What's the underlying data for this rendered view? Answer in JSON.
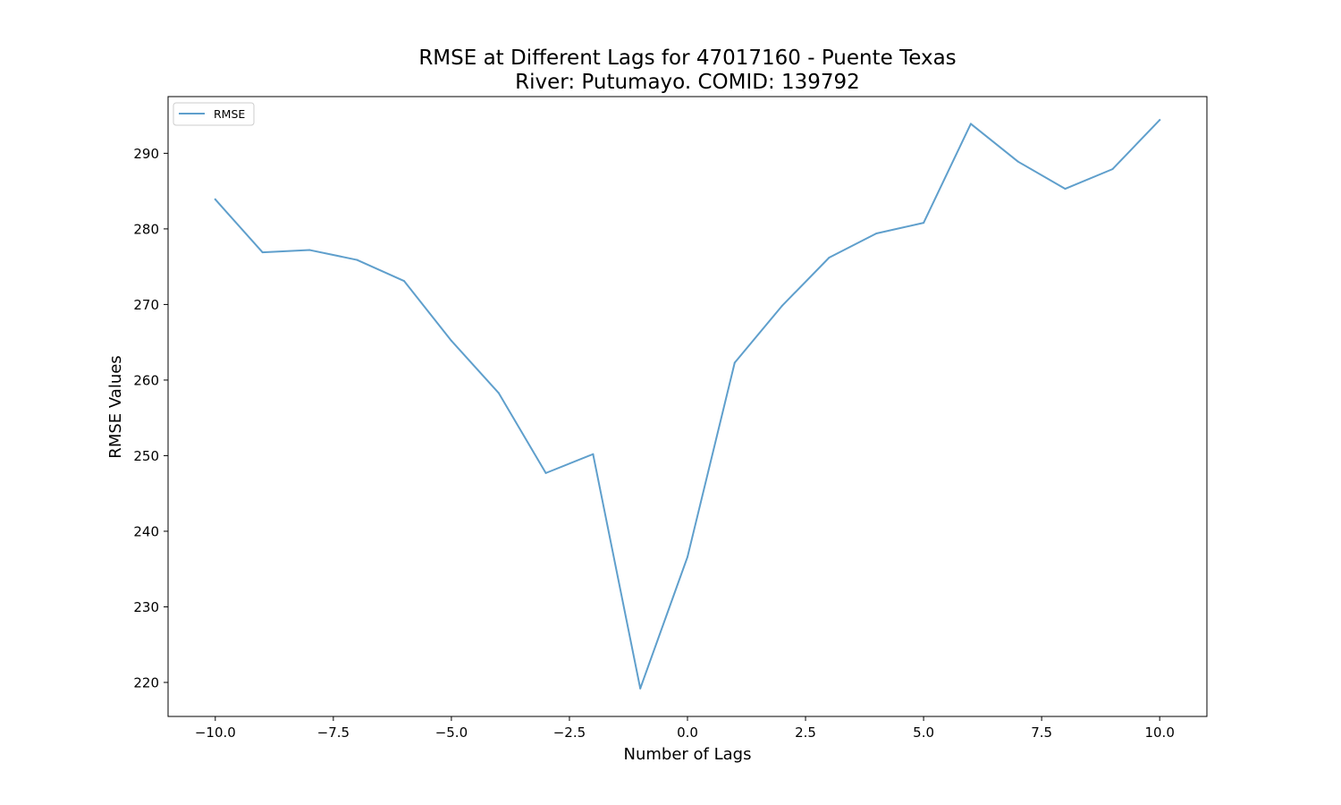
{
  "chart_data": {
    "type": "line",
    "title": "RMSE at Different Lags for 47017160 - Puente Texas",
    "subtitle": "River: Putumayo. COMID: 139792",
    "xlabel": "Number of Lags",
    "ylabel": "RMSE Values",
    "xlim": [
      -11,
      11
    ],
    "ylim": [
      215.5,
      297.5
    ],
    "xticks": [
      -10.0,
      -7.5,
      -5.0,
      -2.5,
      0.0,
      2.5,
      5.0,
      7.5,
      10.0
    ],
    "xtick_labels": [
      "−10.0",
      "−7.5",
      "−5.0",
      "−2.5",
      "0.0",
      "2.5",
      "5.0",
      "7.5",
      "10.0"
    ],
    "yticks": [
      220,
      230,
      240,
      250,
      260,
      270,
      280,
      290
    ],
    "ytick_labels": [
      "220",
      "230",
      "240",
      "250",
      "260",
      "270",
      "280",
      "290"
    ],
    "grid": false,
    "legend_position": "top-left",
    "series": [
      {
        "name": "RMSE",
        "color": "#5f9fcc",
        "x": [
          -10,
          -9,
          -8,
          -7,
          -6,
          -5,
          -4,
          -3,
          -2,
          -1,
          0,
          1,
          2,
          3,
          4,
          5,
          6,
          7,
          8,
          9,
          10
        ],
        "values": [
          283.9,
          276.9,
          277.2,
          275.9,
          273.1,
          265.2,
          258.3,
          247.7,
          250.2,
          219.2,
          236.6,
          262.3,
          269.8,
          276.2,
          279.4,
          280.8,
          293.9,
          288.9,
          285.3,
          287.9,
          294.4
        ]
      }
    ]
  }
}
